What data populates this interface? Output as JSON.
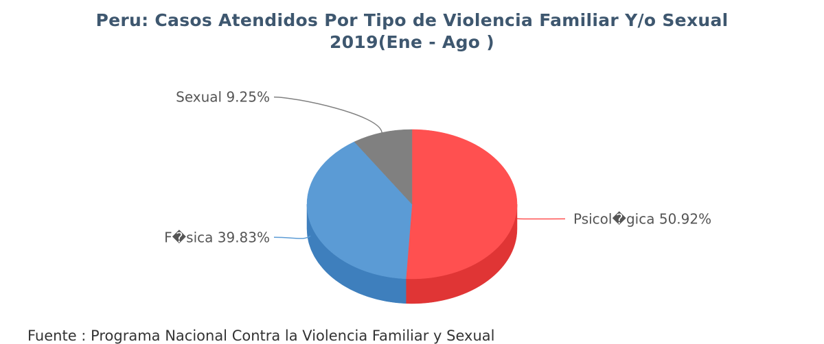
{
  "title": {
    "line1": "Peru: Casos Atendidos Por Tipo de Violencia Familiar Y/o Sexual",
    "line2": "2019(Ene - Ago )"
  },
  "source": "Fuente : Programa Nacional Contra la Violencia Familiar y Sexual",
  "chart_data": {
    "type": "pie",
    "variant": "3d",
    "title": "Peru: Casos Atendidos Por Tipo de Violencia Familiar Y/o Sexual 2019(Ene - Ago )",
    "series": [
      {
        "name": "Psicol�gica",
        "label": "Psicol�gica 50.92%",
        "value": 50.92,
        "color": "#ff5050",
        "dark": "#e03535"
      },
      {
        "name": "F�sica",
        "label": "F�sica 39.83%",
        "value": 39.83,
        "color": "#5b9bd5",
        "dark": "#3e7fbd"
      },
      {
        "name": "Sexual",
        "label": "Sexual 9.25%",
        "value": 9.25,
        "color": "#808080",
        "dark": "#666666"
      }
    ]
  }
}
